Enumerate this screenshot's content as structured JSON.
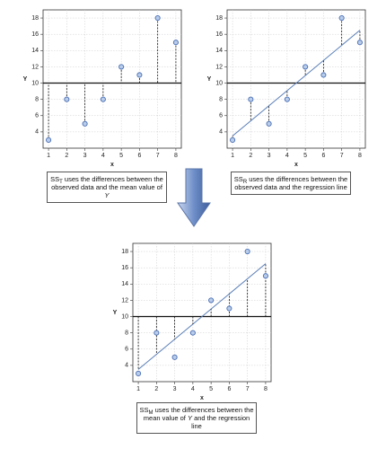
{
  "chart_data": [
    {
      "type": "scatter",
      "x": [
        1,
        2,
        3,
        4,
        5,
        6,
        7,
        8
      ],
      "values": [
        3,
        8,
        5,
        8,
        12,
        11,
        18,
        15
      ],
      "xlabel": "x",
      "ylabel": "Y",
      "xlim": [
        0.7,
        8.3
      ],
      "ylim": [
        2,
        19
      ],
      "xticks": [
        1,
        2,
        3,
        4,
        5,
        6,
        7,
        8
      ],
      "yticks": [
        4,
        6,
        8,
        10,
        12,
        14,
        16,
        18
      ],
      "grid": true,
      "color": "#4a6fb5",
      "mean_line": 10,
      "residuals": "mean",
      "caption": [
        {
          "text": "SS"
        },
        {
          "sub": "T"
        },
        {
          "text": " uses the differences between the observed data and the mean value of "
        },
        {
          "italic": "Y"
        }
      ]
    },
    {
      "type": "scatter",
      "x": [
        1,
        2,
        3,
        4,
        5,
        6,
        7,
        8
      ],
      "values": [
        3,
        8,
        5,
        8,
        12,
        11,
        18,
        15
      ],
      "xlabel": "x",
      "ylabel": "Y",
      "xlim": [
        0.7,
        8.3
      ],
      "ylim": [
        2,
        19
      ],
      "xticks": [
        1,
        2,
        3,
        4,
        5,
        6,
        7,
        8
      ],
      "yticks": [
        4,
        6,
        8,
        10,
        12,
        14,
        16,
        18
      ],
      "grid": true,
      "color": "#4a6fb5",
      "mean_line": 10,
      "regression_line": {
        "x": [
          1,
          8
        ],
        "y": [
          3.5,
          16.5
        ]
      },
      "residuals": "regression",
      "caption": [
        {
          "text": "SS"
        },
        {
          "sub": "R"
        },
        {
          "text": " uses the differences between the observed data and the regression line"
        }
      ]
    },
    {
      "type": "scatter",
      "x": [
        1,
        2,
        3,
        4,
        5,
        6,
        7,
        8
      ],
      "values": [
        3,
        8,
        5,
        8,
        12,
        11,
        18,
        15
      ],
      "xlabel": "x",
      "ylabel": "Y",
      "xlim": [
        0.7,
        8.3
      ],
      "ylim": [
        2,
        19
      ],
      "xticks": [
        1,
        2,
        3,
        4,
        5,
        6,
        7,
        8
      ],
      "yticks": [
        4,
        6,
        8,
        10,
        12,
        14,
        16,
        18
      ],
      "grid": true,
      "color": "#4a6fb5",
      "mean_line": 10,
      "regression_line": {
        "x": [
          1,
          8
        ],
        "y": [
          3.5,
          16.5
        ]
      },
      "residuals": "model",
      "caption": [
        {
          "text": "SS"
        },
        {
          "sub": "M"
        },
        {
          "text": " uses the differences between the mean value of "
        },
        {
          "italic": "Y"
        },
        {
          "text": " and the regression line"
        }
      ]
    }
  ]
}
